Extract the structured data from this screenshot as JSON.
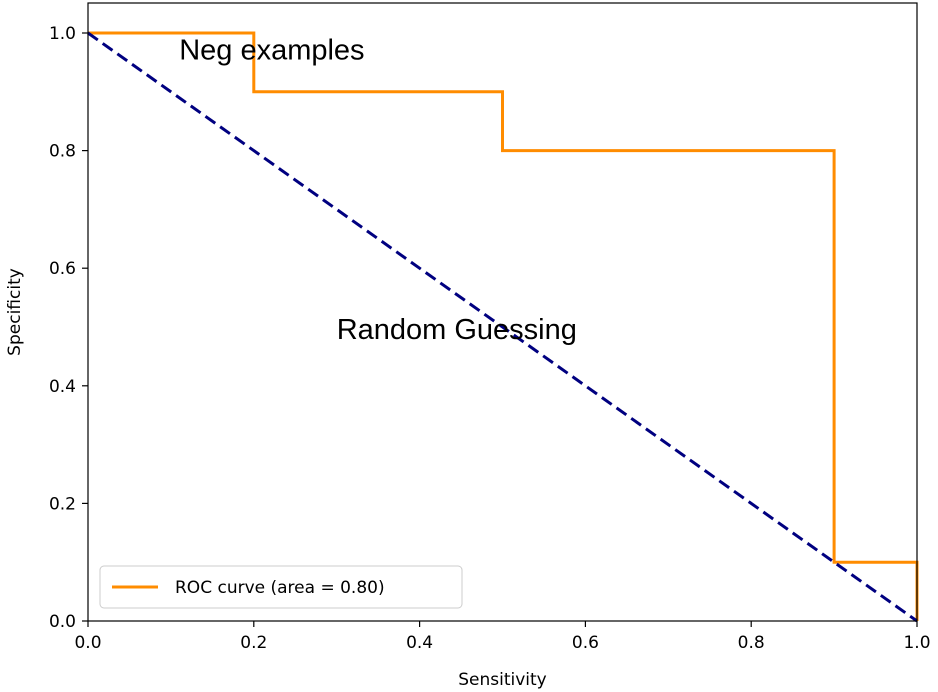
{
  "chart_data": {
    "type": "line",
    "title": "",
    "xlabel": "Sensitivity",
    "ylabel": "Specificity",
    "xlim": [
      0.0,
      1.0
    ],
    "ylim": [
      0.0,
      1.0
    ],
    "xticks": [
      0.0,
      0.2,
      0.4,
      0.6,
      0.8,
      1.0
    ],
    "yticks": [
      0.0,
      0.2,
      0.4,
      0.6,
      0.8,
      1.0
    ],
    "xtick_labels": [
      "0.0",
      "0.2",
      "0.4",
      "0.6",
      "0.8",
      "1.0"
    ],
    "ytick_labels": [
      "0.0",
      "0.2",
      "0.4",
      "0.6",
      "0.8",
      "1.0"
    ],
    "grid": false,
    "legend_position": "lower-left",
    "series": [
      {
        "name": "ROC curve (area = 0.80)",
        "style": "solid",
        "color": "#ff8c00",
        "x": [
          0.0,
          0.2,
          0.2,
          0.5,
          0.5,
          0.9,
          0.9,
          1.0,
          1.0
        ],
        "y": [
          1.0,
          1.0,
          0.9,
          0.9,
          0.8,
          0.8,
          0.1,
          0.1,
          0.0
        ]
      },
      {
        "style": "dashed",
        "color": "#000080",
        "x": [
          0.0,
          1.0
        ],
        "y": [
          1.0,
          0.0
        ]
      }
    ],
    "annotations": [
      {
        "text": "Neg examples",
        "x": 0.11,
        "y": 0.955
      },
      {
        "text": "Random Guessing",
        "x": 0.3,
        "y": 0.48
      }
    ]
  }
}
